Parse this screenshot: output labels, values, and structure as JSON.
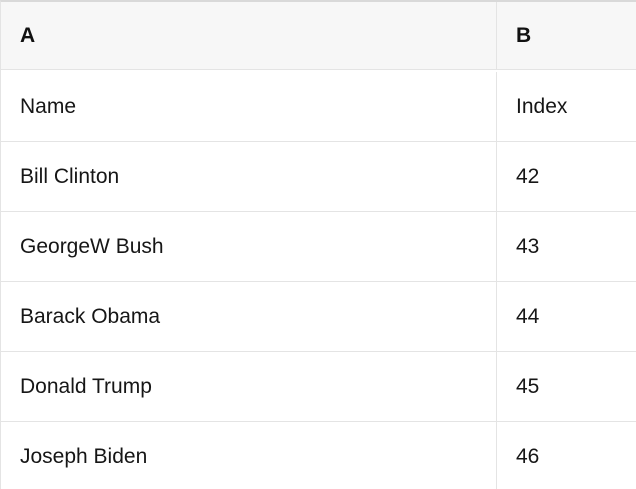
{
  "table": {
    "columns": [
      {
        "label": "A"
      },
      {
        "label": "B"
      }
    ],
    "rows": [
      {
        "a": "Name",
        "b": "Index"
      },
      {
        "a": "Bill Clinton",
        "b": "42"
      },
      {
        "a": "GeorgeW Bush",
        "b": "43"
      },
      {
        "a": "Barack Obama",
        "b": "44"
      },
      {
        "a": "Donald Trump",
        "b": "45"
      },
      {
        "a": "Joseph Biden",
        "b": "46"
      }
    ],
    "colors": {
      "header_background": "#f7f7f7",
      "grid_border": "#e4e4e4",
      "top_border": "#d9d9d9",
      "text": "#161616",
      "row_background": "#ffffff"
    }
  }
}
